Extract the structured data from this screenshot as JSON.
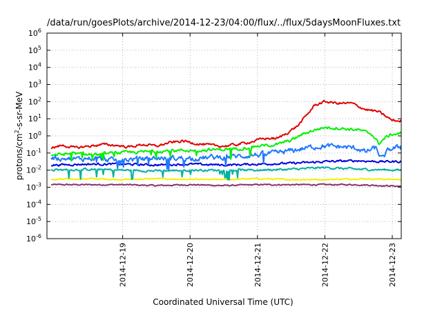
{
  "chart_data": {
    "type": "line",
    "title": "/data/run/goesPlots/archive/2014-12-23/04:00/flux/../flux/5daysMoonFluxes.txt",
    "xlabel": "Coordinated Universal Time (UTC)",
    "ylabel_parts": {
      "a": "protons/cm",
      "sup": "2",
      "b": "-s-sr-MeV"
    },
    "yscale": "log",
    "ylim": [
      -6,
      6
    ],
    "y_ticks": [
      {
        "exp": "-6"
      },
      {
        "exp": "-5"
      },
      {
        "exp": "-4"
      },
      {
        "exp": "-3"
      },
      {
        "exp": "-2"
      },
      {
        "exp": "-1"
      },
      {
        "exp": "0"
      },
      {
        "exp": "1"
      },
      {
        "exp": "2"
      },
      {
        "exp": "3"
      },
      {
        "exp": "4"
      },
      {
        "exp": "5"
      },
      {
        "exp": "6"
      }
    ],
    "xlim": [
      0,
      5
    ],
    "x_ticks": [
      {
        "x": 1,
        "label": "2014-12-19"
      },
      {
        "x": 2,
        "label": "2014-12-20"
      },
      {
        "x": 3,
        "label": "2014-12-21"
      },
      {
        "x": 4,
        "label": "2014-12-22"
      },
      {
        "x": 5,
        "label": "2014-12-23"
      }
    ],
    "grid": "dotted",
    "series": [
      {
        "color": "#e00000",
        "noise": 0.06,
        "spikes": 0.0,
        "points": [
          [
            -0.05,
            -0.7
          ],
          [
            0.1,
            -0.55
          ],
          [
            0.3,
            -0.7
          ],
          [
            0.5,
            -0.6
          ],
          [
            0.7,
            -0.5
          ],
          [
            0.9,
            -0.55
          ],
          [
            1.1,
            -0.65
          ],
          [
            1.3,
            -0.5
          ],
          [
            1.5,
            -0.6
          ],
          [
            1.7,
            -0.4
          ],
          [
            1.9,
            -0.3
          ],
          [
            2.1,
            -0.45
          ],
          [
            2.3,
            -0.55
          ],
          [
            2.5,
            -0.6
          ],
          [
            2.7,
            -0.5
          ],
          [
            2.9,
            -0.35
          ],
          [
            3.1,
            -0.15
          ],
          [
            3.3,
            -0.15
          ],
          [
            3.45,
            0.2
          ],
          [
            3.6,
            0.6
          ],
          [
            3.75,
            1.3
          ],
          [
            3.85,
            1.8
          ],
          [
            4.0,
            2.0
          ],
          [
            4.2,
            1.9
          ],
          [
            4.4,
            1.9
          ],
          [
            4.6,
            1.55
          ],
          [
            4.8,
            1.4
          ],
          [
            5.0,
            0.9
          ],
          [
            5.17,
            0.85
          ]
        ]
      },
      {
        "color": "#00f000",
        "noise": 0.07,
        "spikes": 0.4,
        "points": [
          [
            -0.05,
            -1.1
          ],
          [
            0.3,
            -1.05
          ],
          [
            0.6,
            -1.1
          ],
          [
            0.9,
            -1.0
          ],
          [
            1.2,
            -0.95
          ],
          [
            1.5,
            -0.9
          ],
          [
            1.8,
            -0.85
          ],
          [
            2.1,
            -0.85
          ],
          [
            2.4,
            -0.8
          ],
          [
            2.7,
            -0.75
          ],
          [
            3.0,
            -0.6
          ],
          [
            3.3,
            -0.5
          ],
          [
            3.5,
            -0.25
          ],
          [
            3.7,
            0.15
          ],
          [
            3.85,
            0.35
          ],
          [
            4.0,
            0.5
          ],
          [
            4.2,
            0.45
          ],
          [
            4.5,
            0.35
          ],
          [
            4.7,
            0.1
          ],
          [
            4.8,
            -0.45
          ],
          [
            4.9,
            -0.1
          ],
          [
            5.0,
            0.1
          ],
          [
            5.17,
            0.15
          ]
        ]
      },
      {
        "color": "#1e78ff",
        "noise": 0.12,
        "spikes": 0.5,
        "points": [
          [
            -0.05,
            -1.3
          ],
          [
            0.3,
            -1.35
          ],
          [
            0.6,
            -1.3
          ],
          [
            0.9,
            -1.45
          ],
          [
            1.2,
            -1.35
          ],
          [
            1.5,
            -1.3
          ],
          [
            1.8,
            -1.3
          ],
          [
            2.1,
            -1.3
          ],
          [
            2.4,
            -1.25
          ],
          [
            2.7,
            -1.2
          ],
          [
            3.0,
            -1.1
          ],
          [
            3.3,
            -1.0
          ],
          [
            3.6,
            -0.8
          ],
          [
            3.8,
            -0.65
          ],
          [
            4.0,
            -0.6
          ],
          [
            4.3,
            -0.65
          ],
          [
            4.5,
            -0.75
          ],
          [
            4.6,
            -0.95
          ],
          [
            4.75,
            -0.7
          ],
          [
            4.85,
            -1.35
          ],
          [
            4.95,
            -0.8
          ],
          [
            5.17,
            -0.6
          ]
        ]
      },
      {
        "color": "#0000e0",
        "noise": 0.05,
        "spikes": 0.0,
        "points": [
          [
            -0.05,
            -1.7
          ],
          [
            0.5,
            -1.65
          ],
          [
            1.0,
            -1.65
          ],
          [
            1.5,
            -1.7
          ],
          [
            2.0,
            -1.65
          ],
          [
            2.5,
            -1.7
          ],
          [
            3.0,
            -1.65
          ],
          [
            3.5,
            -1.6
          ],
          [
            3.8,
            -1.55
          ],
          [
            4.0,
            -1.5
          ],
          [
            4.5,
            -1.45
          ],
          [
            4.8,
            -1.5
          ],
          [
            5.17,
            -1.5
          ]
        ]
      },
      {
        "color": "#00b0a0",
        "noise": 0.05,
        "spikes": 0.35,
        "points": [
          [
            -0.05,
            -2.0
          ],
          [
            0.5,
            -1.95
          ],
          [
            1.0,
            -2.0
          ],
          [
            1.5,
            -2.05
          ],
          [
            2.0,
            -2.0
          ],
          [
            2.5,
            -2.0
          ],
          [
            3.0,
            -2.0
          ],
          [
            3.5,
            -1.95
          ],
          [
            4.0,
            -1.85
          ],
          [
            4.5,
            -1.95
          ],
          [
            5.17,
            -2.0
          ]
        ]
      },
      {
        "color": "#f0f000",
        "noise": 0.03,
        "spikes": 0.0,
        "points": [
          [
            -0.05,
            -2.55
          ],
          [
            0.5,
            -2.5
          ],
          [
            1.0,
            -2.55
          ],
          [
            1.5,
            -2.5
          ],
          [
            2.0,
            -2.55
          ],
          [
            2.5,
            -2.55
          ],
          [
            3.0,
            -2.5
          ],
          [
            3.5,
            -2.55
          ],
          [
            4.0,
            -2.55
          ],
          [
            4.5,
            -2.5
          ],
          [
            5.17,
            -2.55
          ]
        ]
      },
      {
        "color": "#883070",
        "noise": 0.03,
        "spikes": 0.0,
        "points": [
          [
            -0.05,
            -2.85
          ],
          [
            0.5,
            -2.85
          ],
          [
            1.0,
            -2.85
          ],
          [
            1.5,
            -2.9
          ],
          [
            2.0,
            -2.85
          ],
          [
            2.5,
            -2.9
          ],
          [
            3.0,
            -2.85
          ],
          [
            3.5,
            -2.85
          ],
          [
            4.0,
            -2.85
          ],
          [
            4.5,
            -2.85
          ],
          [
            5.17,
            -2.95
          ]
        ]
      }
    ]
  }
}
